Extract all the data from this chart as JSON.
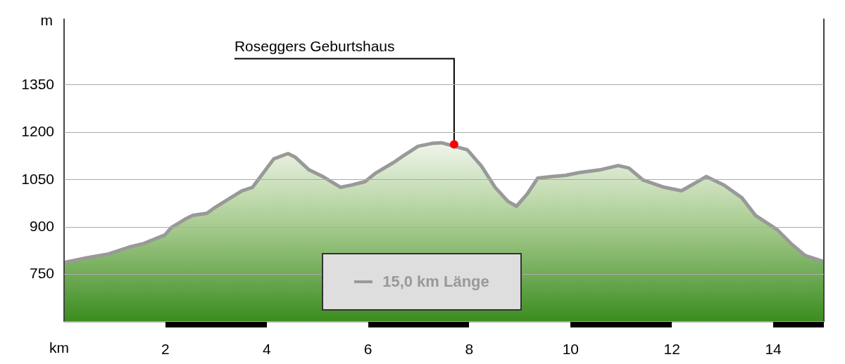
{
  "chart_data": {
    "type": "area",
    "xlabel": "km",
    "ylabel": "m",
    "xlim": [
      0,
      15
    ],
    "xticks": [
      2,
      4,
      6,
      8,
      10,
      12,
      14
    ],
    "ylim": [
      600,
      1560
    ],
    "yticks": [
      750,
      900,
      1050,
      1200,
      1350
    ],
    "grid": true,
    "legend": "bottom",
    "series": [
      {
        "name": "15,0 km Länge",
        "color": "#999999",
        "x": [
          0,
          0.46,
          0.88,
          1.29,
          1.57,
          1.99,
          2.12,
          2.4,
          2.54,
          2.82,
          2.96,
          3.24,
          3.51,
          3.72,
          3.93,
          4.14,
          4.42,
          4.56,
          4.83,
          5.11,
          5.46,
          5.67,
          5.94,
          6.15,
          6.5,
          6.71,
          6.99,
          7.26,
          7.45,
          7.96,
          8.24,
          8.51,
          8.76,
          8.93,
          9.14,
          9.35,
          9.63,
          9.9,
          10.18,
          10.6,
          10.94,
          11.15,
          11.43,
          11.85,
          12.19,
          12.68,
          13.03,
          13.38,
          13.65,
          14.07,
          14.35,
          14.63,
          14.97,
          15
        ],
        "values": [
          788,
          803,
          815,
          837,
          848,
          875,
          899,
          926,
          937,
          944,
          960,
          988,
          1015,
          1026,
          1071,
          1116,
          1133,
          1122,
          1082,
          1060,
          1026,
          1033,
          1044,
          1071,
          1104,
          1127,
          1156,
          1165,
          1167,
          1145,
          1093,
          1026,
          982,
          966,
          1004,
          1055,
          1060,
          1064,
          1073,
          1082,
          1095,
          1087,
          1049,
          1026,
          1015,
          1060,
          1033,
          993,
          937,
          893,
          848,
          810,
          792,
          790
        ]
      }
    ],
    "annotations": [
      {
        "text": "Roseggers Geburtshaus",
        "x": 7.7,
        "y": 1162
      }
    ]
  }
}
